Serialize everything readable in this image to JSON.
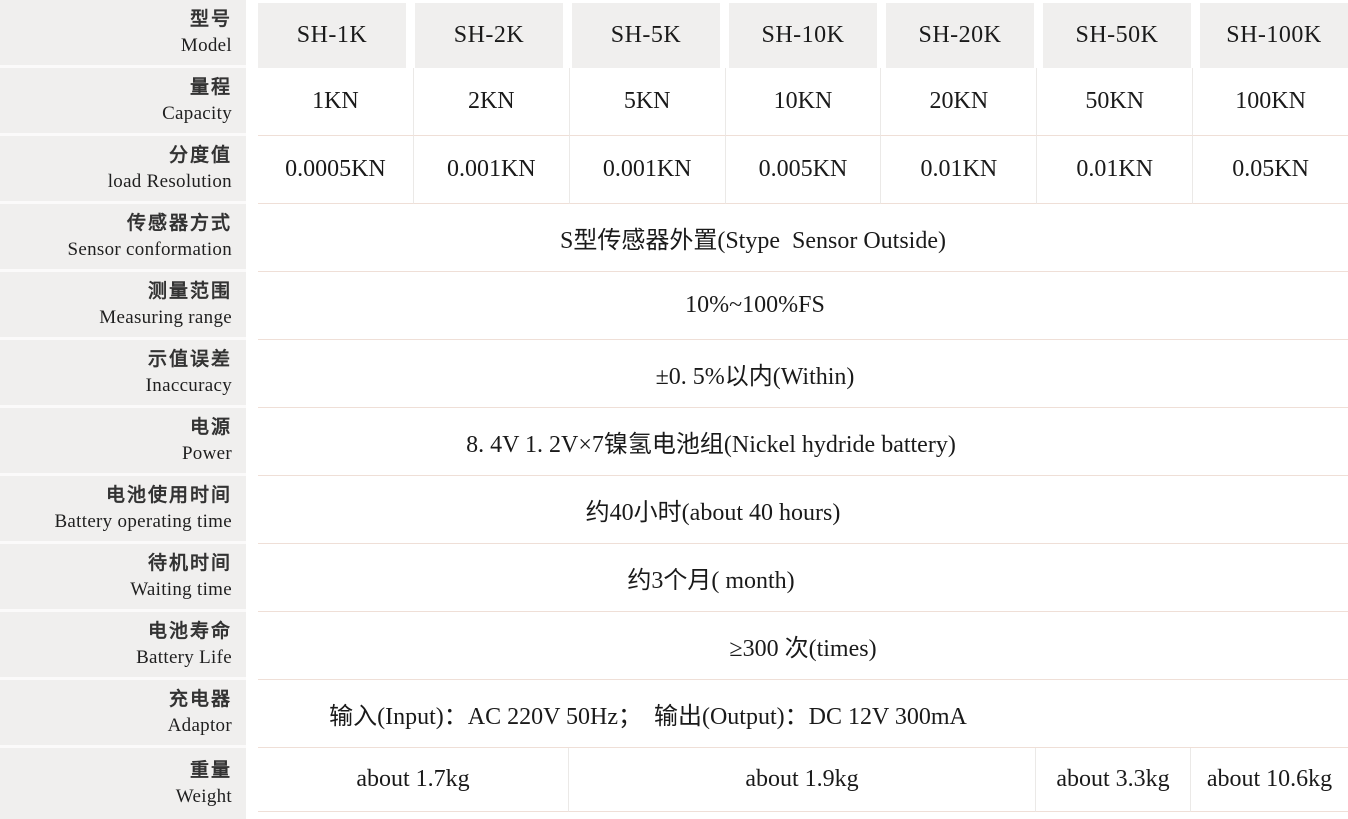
{
  "table": {
    "rows": [
      {
        "zh": "型号",
        "en": "Model",
        "values": [
          "SH-1K",
          "SH-2K",
          "SH-5K",
          "SH-10K",
          "SH-20K",
          "SH-50K",
          "SH-100K"
        ]
      },
      {
        "zh": "量程",
        "en": "Capacity",
        "values": [
          "1KN",
          "2KN",
          "5KN",
          "10KN",
          "20KN",
          "50KN",
          "100KN"
        ]
      },
      {
        "zh": "分度值",
        "en": "load Resolution",
        "values": [
          "0.0005KN",
          "0.001KN",
          "0.001KN",
          "0.005KN",
          "0.01KN",
          "0.01KN",
          "0.05KN"
        ]
      },
      {
        "zh": "传感器方式",
        "en": "Sensor conformation",
        "value": "S型传感器外置(Stype  Sensor Outside)"
      },
      {
        "zh": "测量范围",
        "en": "Measuring range",
        "value": "10%~100%FS"
      },
      {
        "zh": "示值误差",
        "en": "Inaccuracy",
        "value": "±0. 5%以内(Within)"
      },
      {
        "zh": "电源",
        "en": "Power",
        "value": "8. 4V 1. 2V×7镍氢电池组(Nickel hydride battery)"
      },
      {
        "zh": "电池使用时间",
        "en": "Battery operating time",
        "value": "约40小时(about 40 hours)"
      },
      {
        "zh": "待机时间",
        "en": "Waiting time",
        "value": "约3个月( month)"
      },
      {
        "zh": "电池寿命",
        "en": "Battery Life",
        "value": "≥300 次(times)"
      },
      {
        "zh": "充电器",
        "en": "Adaptor",
        "value": "输入(Input)：AC 220V 50Hz；  输出(Output)：DC 12V 300mA"
      },
      {
        "zh": "重量",
        "en": "Weight",
        "spans": [
          {
            "text": "about 1.7kg",
            "cols": 2
          },
          {
            "text": "about 1.9kg",
            "cols": 3
          },
          {
            "text": "about 3.3kg",
            "cols": 1
          },
          {
            "text": "about 10.6kg",
            "cols": 1
          }
        ]
      }
    ],
    "colors": {
      "label_bg": "#f0efee",
      "grid_h": "#efdfd7",
      "grid_v": "#ebe9e7"
    }
  }
}
